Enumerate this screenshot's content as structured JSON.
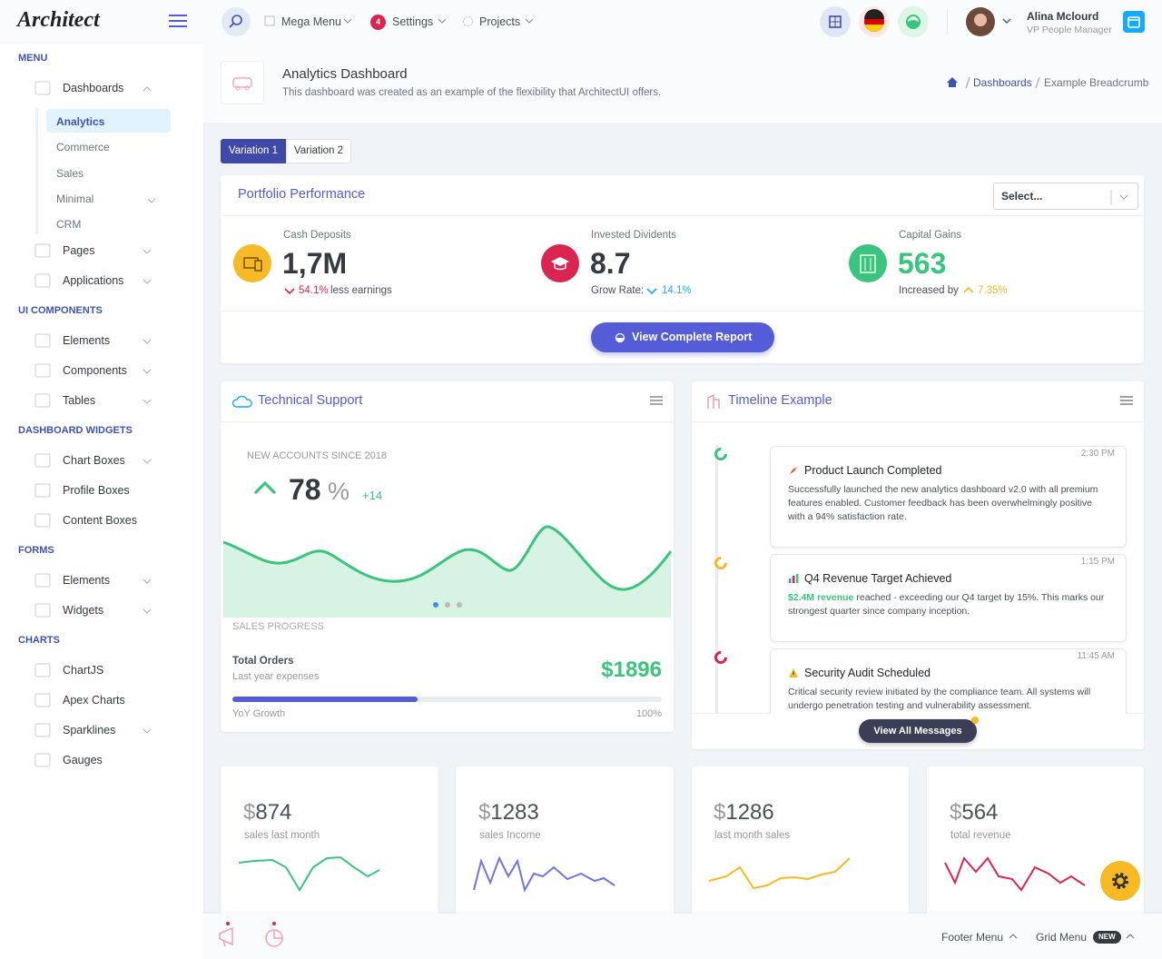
{
  "header": {
    "logo": "Architect",
    "menu_items": [
      {
        "label": "Mega Menu"
      },
      {
        "label": "Settings",
        "badge": "4"
      },
      {
        "label": "Projects"
      }
    ],
    "user": {
      "name": "Alina Mclourd",
      "role": "VP People Manager"
    }
  },
  "sidebar": {
    "sections": [
      {
        "title": "MENU",
        "items": [
          {
            "label": "Dashboards",
            "children": [
              "Analytics",
              "Commerce",
              "Sales",
              "Minimal",
              "CRM"
            ]
          },
          {
            "label": "Pages"
          },
          {
            "label": "Applications"
          }
        ]
      },
      {
        "title": "UI COMPONENTS",
        "items": [
          {
            "label": "Elements"
          },
          {
            "label": "Components"
          },
          {
            "label": "Tables"
          }
        ]
      },
      {
        "title": "DASHBOARD WIDGETS",
        "items": [
          {
            "label": "Chart Boxes"
          },
          {
            "label": "Profile Boxes"
          },
          {
            "label": "Content Boxes"
          }
        ]
      },
      {
        "title": "FORMS",
        "items": [
          {
            "label": "Elements"
          },
          {
            "label": "Widgets"
          }
        ]
      },
      {
        "title": "CHARTS",
        "items": [
          {
            "label": "ChartJS"
          },
          {
            "label": "Apex Charts"
          },
          {
            "label": "Sparklines"
          },
          {
            "label": "Gauges"
          }
        ]
      }
    ]
  },
  "page_title": {
    "title": "Analytics Dashboard",
    "subtitle": "This dashboard was created as an example of the flexibility that ArchitectUI offers.",
    "breadcrumb": [
      "Dashboards",
      "Example Breadcrumb"
    ]
  },
  "tabs": [
    "Variation 1",
    "Variation 2"
  ],
  "portfolio": {
    "title": "Portfolio Performance",
    "select": "Select...",
    "stats": [
      {
        "label": "Cash Deposits",
        "value": "1,7M",
        "change": "54.1%",
        "note": "less earnings"
      },
      {
        "label": "Invested Dividents",
        "value": "8.7",
        "note": "Grow Rate:",
        "change": "14.1%"
      },
      {
        "label": "Capital Gains",
        "value": "563",
        "note": "Increased by",
        "change": "7.35%"
      }
    ],
    "button": "View Complete Report"
  },
  "support": {
    "title": "Technical Support",
    "subtitle": "NEW ACCOUNTS SINCE 2018",
    "value": "78",
    "unit": "%",
    "delta": "+14",
    "section": "SALES PROGRESS",
    "orders_label": "Total Orders",
    "orders_sub": "Last year expenses",
    "orders_value": "$1896",
    "growth_label": "YoY Growth",
    "growth_value": "100%"
  },
  "timeline": {
    "title": "Timeline Example",
    "items": [
      {
        "time": "2:30 PM",
        "title": "Product Launch Completed",
        "body": "Successfully launched the new analytics dashboard v2.0 with all premium features enabled. Customer feedback has been overwhelmingly positive with a 94% satisfaction rate."
      },
      {
        "time": "1:15 PM",
        "title": "Q4 Revenue Target Achieved",
        "highlight": "$2.4M revenue",
        "body": "reached - exceeding our Q4 target by 15%. This marks our strongest quarter since company inception."
      },
      {
        "time": "11:45 AM",
        "title": "Security Audit Scheduled",
        "body": "Critical security review initiated by the compliance team. All systems will undergo penetration testing and vulnerability assessment."
      }
    ],
    "button": "View All Messages"
  },
  "cards": [
    {
      "currency": "$",
      "value": "874",
      "label": "sales last month"
    },
    {
      "currency": "$",
      "value": "1283",
      "label": "sales Income"
    },
    {
      "currency": "$",
      "value": "1286",
      "label": "last month sales"
    },
    {
      "currency": "$",
      "value": "564",
      "label": "total revenue"
    }
  ],
  "footer": {
    "links": [
      "Footer Menu",
      "Grid Menu"
    ],
    "badge": "NEW"
  }
}
